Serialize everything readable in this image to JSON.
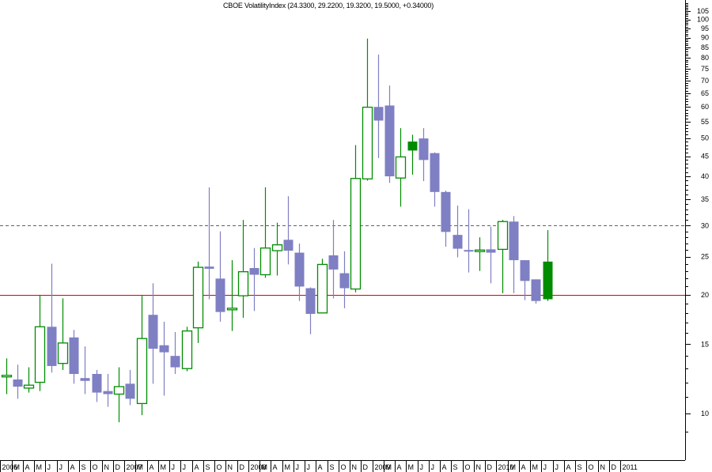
{
  "chart_data": {
    "type": "candlestick",
    "title": "CBOE VolatilityIndex (24.3300, 29.2200, 19.3200, 19.5000, +0.34000)",
    "xlabel": "",
    "ylabel": "",
    "y_scale": "log",
    "ylim": [
      8.5,
      110
    ],
    "grid": false,
    "legend": null,
    "y_ticks": [
      10,
      15,
      20,
      25,
      30,
      35,
      40,
      45,
      50,
      55,
      60,
      65,
      70,
      75,
      80,
      85,
      90,
      95,
      100,
      105
    ],
    "x_tick_labels": [
      "2006",
      "M",
      "A",
      "M",
      "J",
      "J",
      "A",
      "S",
      "O",
      "N",
      "D",
      "2007",
      "M",
      "A",
      "M",
      "J",
      "J",
      "A",
      "S",
      "O",
      "N",
      "D",
      "2008",
      "M",
      "A",
      "M",
      "J",
      "J",
      "A",
      "S",
      "O",
      "N",
      "D",
      "2009",
      "M",
      "A",
      "M",
      "J",
      "J",
      "A",
      "S",
      "O",
      "N",
      "D",
      "2010",
      "M",
      "A",
      "M",
      "J",
      "J",
      "A",
      "S",
      "O",
      "N",
      "D",
      "2011"
    ],
    "reference_lines": [
      {
        "value": 20,
        "style": "solid",
        "color": "#e00000"
      },
      {
        "value": 30,
        "style": "dashed",
        "color": "#606060"
      }
    ],
    "colors": {
      "up": "#008c00",
      "down": "#7f7fc4",
      "up_filled": "#008c00"
    },
    "candles": [
      {
        "month": "2006-01",
        "open": 12.5,
        "high": 13.8,
        "low": 11.2,
        "close": 12.5
      },
      {
        "month": "2006-02",
        "open": 12.2,
        "high": 13.3,
        "low": 10.9,
        "close": 11.7
      },
      {
        "month": "2006-03",
        "open": 11.6,
        "high": 13.1,
        "low": 11.3,
        "close": 11.8
      },
      {
        "month": "2006-04",
        "open": 12.0,
        "high": 19.9,
        "low": 11.4,
        "close": 16.6
      },
      {
        "month": "2006-05",
        "open": 16.6,
        "high": 24.0,
        "low": 12.7,
        "close": 13.2
      },
      {
        "month": "2006-06",
        "open": 13.4,
        "high": 19.6,
        "low": 12.9,
        "close": 15.1
      },
      {
        "month": "2006-07",
        "open": 15.6,
        "high": 16.3,
        "low": 11.9,
        "close": 12.6
      },
      {
        "month": "2006-08",
        "open": 12.3,
        "high": 14.8,
        "low": 11.2,
        "close": 12.1
      },
      {
        "month": "2006-09",
        "open": 12.6,
        "high": 12.9,
        "low": 10.7,
        "close": 11.3
      },
      {
        "month": "2006-10",
        "open": 11.4,
        "high": 12.6,
        "low": 10.4,
        "close": 11.2
      },
      {
        "month": "2006-11",
        "open": 11.2,
        "high": 13.1,
        "low": 9.5,
        "close": 11.7
      },
      {
        "month": "2006-12",
        "open": 11.9,
        "high": 12.9,
        "low": 10.5,
        "close": 10.9
      },
      {
        "month": "2007-01",
        "open": 10.6,
        "high": 19.9,
        "low": 9.9,
        "close": 15.5
      },
      {
        "month": "2007-02",
        "open": 17.8,
        "high": 21.4,
        "low": 11.9,
        "close": 14.6
      },
      {
        "month": "2007-03",
        "open": 14.9,
        "high": 17.1,
        "low": 11.1,
        "close": 14.3
      },
      {
        "month": "2007-04",
        "open": 14.0,
        "high": 16.1,
        "low": 12.6,
        "close": 13.1
      },
      {
        "month": "2007-05",
        "open": 13.0,
        "high": 16.6,
        "low": 12.8,
        "close": 16.2
      },
      {
        "month": "2007-06",
        "open": 16.5,
        "high": 24.3,
        "low": 15.1,
        "close": 23.5
      },
      {
        "month": "2007-07",
        "open": 23.6,
        "high": 37.5,
        "low": 19.5,
        "close": 23.3
      },
      {
        "month": "2007-08",
        "open": 22.0,
        "high": 29.0,
        "low": 17.1,
        "close": 18.1
      },
      {
        "month": "2007-09",
        "open": 18.5,
        "high": 24.5,
        "low": 16.2,
        "close": 18.5
      },
      {
        "month": "2007-10",
        "open": 19.9,
        "high": 31.0,
        "low": 17.5,
        "close": 22.9
      },
      {
        "month": "2007-11",
        "open": 23.4,
        "high": 26.3,
        "low": 18.2,
        "close": 22.5
      },
      {
        "month": "2007-12",
        "open": 22.5,
        "high": 37.5,
        "low": 22.1,
        "close": 26.3
      },
      {
        "month": "2008-01",
        "open": 25.9,
        "high": 30.5,
        "low": 22.4,
        "close": 26.8
      },
      {
        "month": "2008-02",
        "open": 27.6,
        "high": 35.6,
        "low": 23.9,
        "close": 25.9
      },
      {
        "month": "2008-03",
        "open": 25.6,
        "high": 27.0,
        "low": 19.3,
        "close": 21.0
      },
      {
        "month": "2008-04",
        "open": 20.8,
        "high": 20.9,
        "low": 15.9,
        "close": 17.9
      },
      {
        "month": "2008-05",
        "open": 18.0,
        "high": 24.7,
        "low": 18.0,
        "close": 23.9
      },
      {
        "month": "2008-06",
        "open": 25.2,
        "high": 31.0,
        "low": 19.6,
        "close": 23.2
      },
      {
        "month": "2008-07",
        "open": 22.7,
        "high": 25.8,
        "low": 18.5,
        "close": 20.8
      },
      {
        "month": "2008-08",
        "open": 20.7,
        "high": 48.0,
        "low": 20.3,
        "close": 39.5
      },
      {
        "month": "2008-09",
        "open": 39.4,
        "high": 89.5,
        "low": 39.0,
        "close": 59.9
      },
      {
        "month": "2008-10",
        "open": 60.0,
        "high": 81.5,
        "low": 44.5,
        "close": 55.4
      },
      {
        "month": "2008-11",
        "open": 60.5,
        "high": 68.0,
        "low": 38.5,
        "close": 40.0
      },
      {
        "month": "2008-12",
        "open": 39.6,
        "high": 53.0,
        "low": 33.5,
        "close": 44.8
      },
      {
        "month": "2009-01",
        "open": 46.5,
        "high": 51.0,
        "low": 40.4,
        "close": 49.0
      },
      {
        "month": "2009-02",
        "open": 49.9,
        "high": 53.0,
        "low": 38.9,
        "close": 44.0
      },
      {
        "month": "2009-03",
        "open": 45.8,
        "high": 46.0,
        "low": 33.5,
        "close": 36.5
      },
      {
        "month": "2009-04",
        "open": 36.5,
        "high": 36.8,
        "low": 26.5,
        "close": 28.9
      },
      {
        "month": "2009-05",
        "open": 28.4,
        "high": 33.7,
        "low": 24.9,
        "close": 26.2
      },
      {
        "month": "2009-06",
        "open": 26.0,
        "high": 33.0,
        "low": 22.8,
        "close": 25.8
      },
      {
        "month": "2009-07",
        "open": 25.8,
        "high": 28.0,
        "low": 23.0,
        "close": 26.0
      },
      {
        "month": "2009-08",
        "open": 26.1,
        "high": 29.8,
        "low": 21.4,
        "close": 25.6
      },
      {
        "month": "2009-09",
        "open": 26.1,
        "high": 31.0,
        "low": 20.2,
        "close": 30.7
      },
      {
        "month": "2009-10",
        "open": 30.7,
        "high": 31.7,
        "low": 20.2,
        "close": 24.5
      },
      {
        "month": "2009-11",
        "open": 24.5,
        "high": 24.5,
        "low": 19.4,
        "close": 21.7
      },
      {
        "month": "2009-12",
        "open": 21.9,
        "high": 21.9,
        "low": 19.0,
        "close": 19.3
      },
      {
        "month": "2010-01",
        "open": 19.5,
        "high": 29.2,
        "low": 19.3,
        "close": 24.3
      }
    ]
  }
}
